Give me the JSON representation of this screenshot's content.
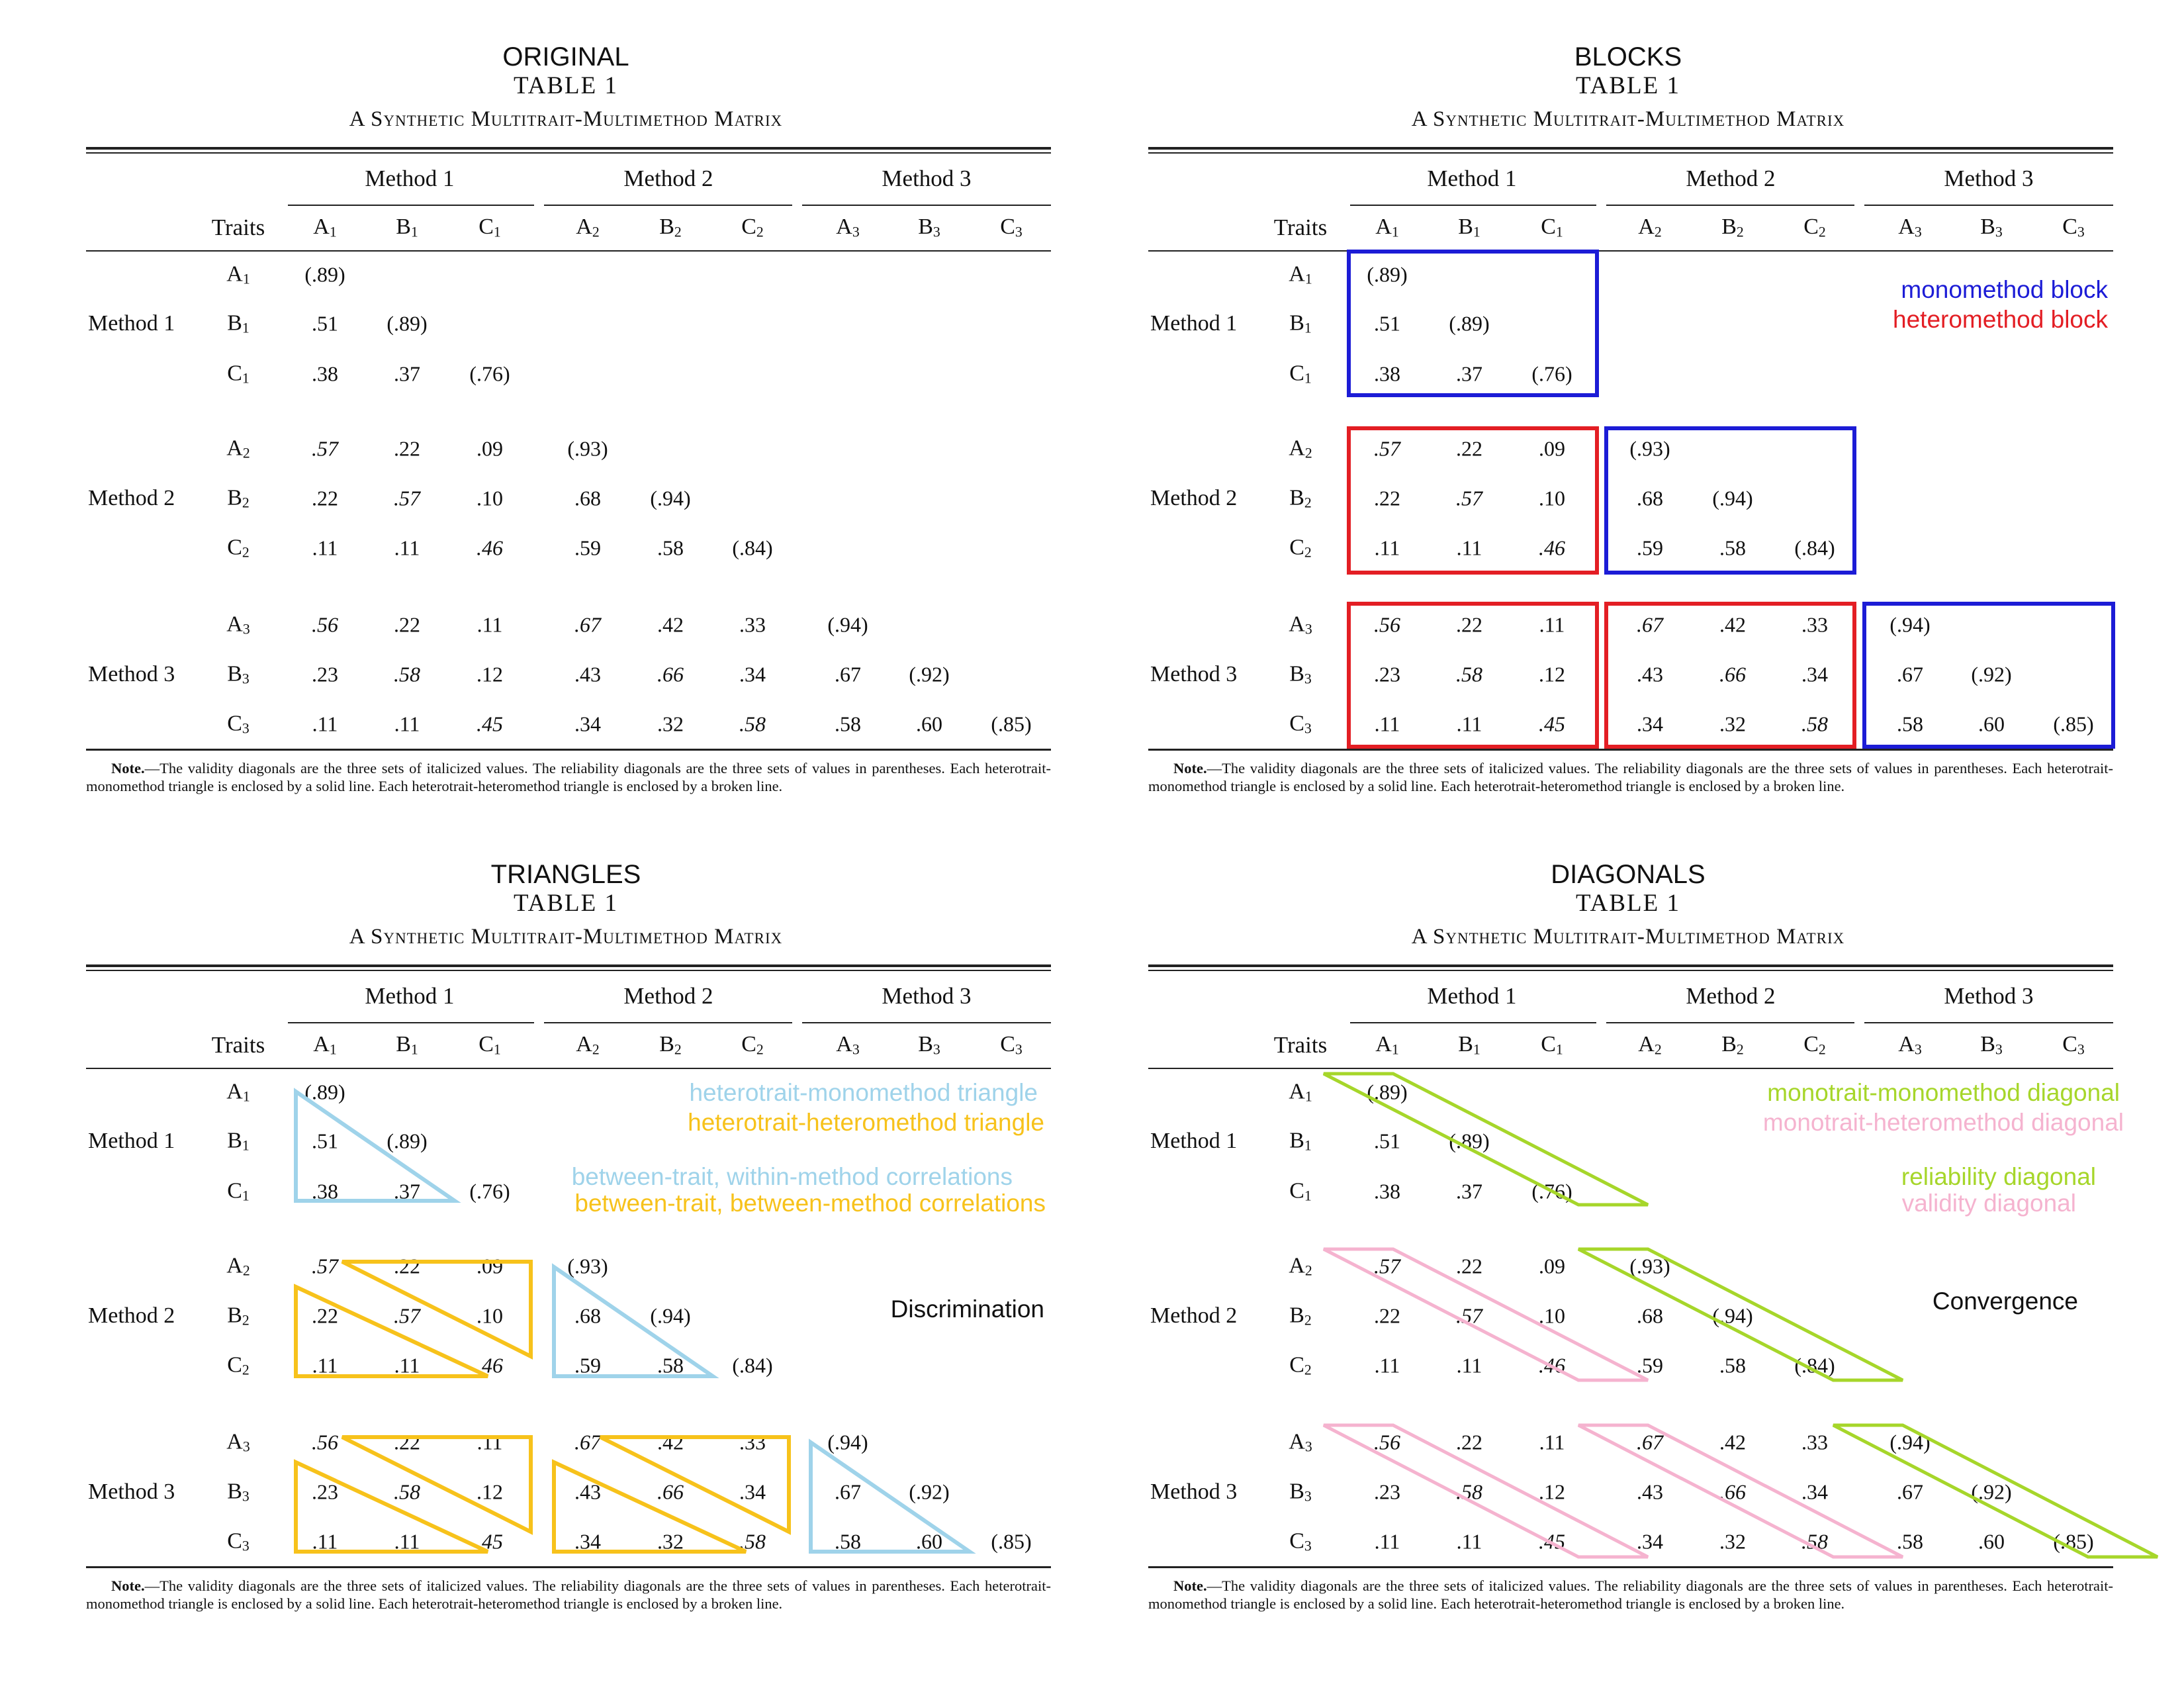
{
  "panels": [
    {
      "key": "original",
      "title": "ORIGINAL"
    },
    {
      "key": "blocks",
      "title": "BLOCKS"
    },
    {
      "key": "triangles",
      "title": "TRIANGLES"
    },
    {
      "key": "diagonals",
      "title": "DIAGONALS"
    }
  ],
  "table": {
    "table_label": "TABLE 1",
    "matrix_title": "A Synthetic Multitrait-Multimethod Matrix",
    "traits_header": "Traits",
    "methods": [
      "Method 1",
      "Method 2",
      "Method 3"
    ],
    "traits": [
      "A",
      "B",
      "C"
    ],
    "rows": [
      [
        ".89"
      ],
      [
        ".51",
        ".89"
      ],
      [
        ".38",
        ".37",
        ".76"
      ],
      [
        ".57",
        ".22",
        ".09",
        ".93"
      ],
      [
        ".22",
        ".57",
        ".10",
        ".68",
        ".94"
      ],
      [
        ".11",
        ".11",
        ".46",
        ".59",
        ".58",
        ".84"
      ],
      [
        ".56",
        ".22",
        ".11",
        ".67",
        ".42",
        ".33",
        ".94"
      ],
      [
        ".23",
        ".58",
        ".12",
        ".43",
        ".66",
        ".34",
        ".67",
        ".92"
      ],
      [
        ".11",
        ".11",
        ".45",
        ".34",
        ".32",
        ".58",
        ".58",
        ".60",
        ".85"
      ]
    ],
    "note": "The validity diagonals are the three sets of italicized values. The reliability diagonals are the three sets of values in parentheses. Each heterotrait-monomethod triangle is enclosed by a solid line. Each heterotrait-heteromethod triangle is enclosed by a broken line.",
    "note_label": "Note."
  },
  "legends": {
    "blocks": [
      {
        "text": "monomethod block",
        "color": "#1c1cd6"
      },
      {
        "text": "heteromethod block",
        "color": "#e31e24"
      }
    ],
    "triangles": [
      {
        "text": "heterotrait-monomethod triangle",
        "color": "#9fd3ea"
      },
      {
        "text": "heterotrait-heteromethod triangle",
        "color": "#f7c21b"
      },
      {
        "text": "between-trait, within-method correlations",
        "color": "#9fd3ea"
      },
      {
        "text": "between-trait, between-method correlations",
        "color": "#f7c21b"
      },
      {
        "text": "Discrimination",
        "color": "#111111"
      }
    ],
    "diagonals": [
      {
        "text": "monotrait-monomethod diagonal",
        "color": "#a6d62a"
      },
      {
        "text": "monotrait-heteromethod diagonal",
        "color": "#f5b3cf"
      },
      {
        "text": "reliability diagonal",
        "color": "#a6d62a"
      },
      {
        "text": "validity diagonal",
        "color": "#f5b3cf"
      },
      {
        "text": "Convergence",
        "color": "#111111"
      }
    ]
  },
  "colors": {
    "mono_block": "#1c1cd6",
    "hetero_block": "#e31e24",
    "hm_triangle": "#9fd3ea",
    "hh_triangle": "#f7c21b",
    "reliability": "#a6d62a",
    "validity": "#f5b3cf"
  }
}
